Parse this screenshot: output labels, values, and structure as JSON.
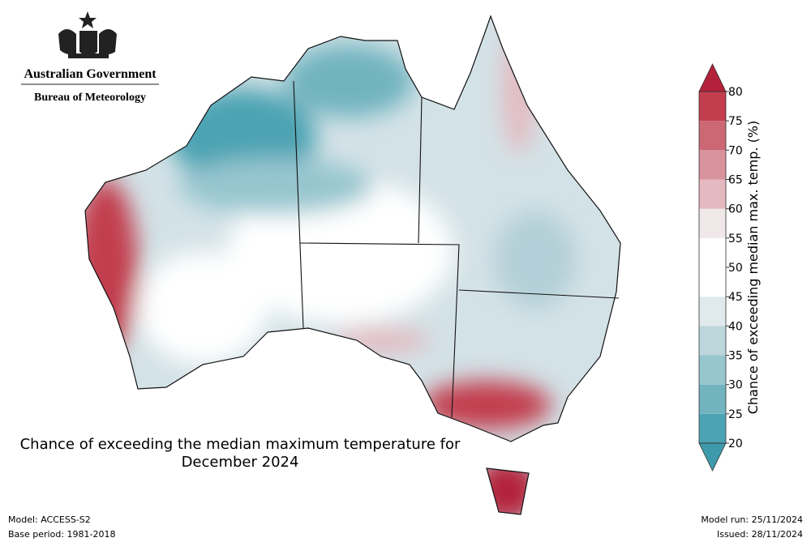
{
  "header": {
    "government": "Australian Government",
    "agency": "Bureau of Meteorology"
  },
  "title_lines": [
    "Chance of exceeding the median maximum temperature for",
    "December 2024"
  ],
  "colorbar": {
    "label": "Chance of exceeding median max. temp. (%)",
    "ticks": [
      20,
      25,
      30,
      35,
      40,
      45,
      50,
      55,
      60,
      65,
      70,
      75,
      80
    ],
    "colors": [
      "#4ba3b3",
      "#71b4c0",
      "#97c6cf",
      "#bcd6dc",
      "#e0e9ec",
      "#ffffff",
      "#ffffff",
      "#efe7e8",
      "#e4b9bf",
      "#d9939c",
      "#cb6874",
      "#c23d4e"
    ],
    "extend_colors": {
      "low": "#3e9aab",
      "high": "#b3213b"
    }
  },
  "footer": {
    "model": "Model: ACCESS-S2",
    "base_period": "Base period: 1981-2018",
    "model_run": "Model run: 25/11/2024",
    "issued": "Issued: 28/11/2024"
  }
}
